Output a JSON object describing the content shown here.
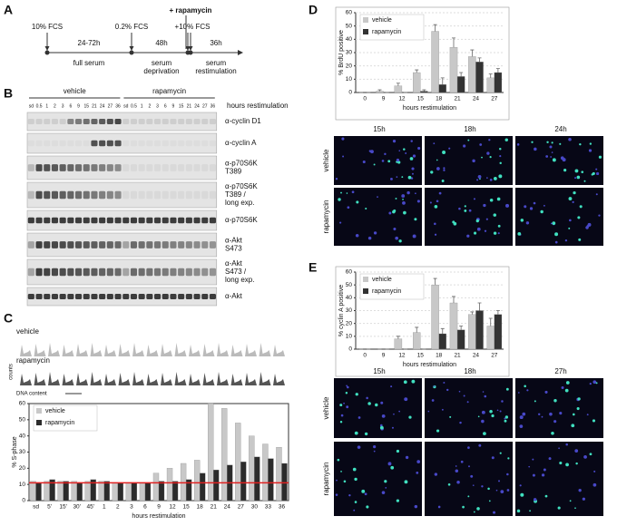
{
  "figure": {
    "panel_labels": [
      "A",
      "B",
      "C",
      "D",
      "E"
    ],
    "timeline": {
      "top": [
        "10% FCS",
        "0.2% FCS",
        "+ rapamycin",
        "+10% FCS"
      ],
      "durations": [
        "24-72h",
        "48h",
        "36h"
      ],
      "phases": [
        [
          "full serum"
        ],
        [
          "serum",
          "deprivation"
        ],
        [
          "serum",
          "restimulation"
        ]
      ]
    },
    "blot": {
      "groups": [
        "vehicle",
        "rapamycin"
      ],
      "axis": "hours restimulation",
      "lanes": [
        [
          "sd",
          "0.5",
          "1",
          "2",
          "3",
          "6",
          "9",
          "15",
          "21",
          "24",
          "27",
          "36"
        ],
        [
          "sd",
          "0.5",
          "1",
          "2",
          "3",
          "6",
          "9",
          "15",
          "21",
          "24",
          "27",
          "36"
        ]
      ],
      "rows": [
        [
          "α-cyclin D1"
        ],
        [
          "α-cyclin A"
        ],
        [
          "α-p70S6K",
          "T389"
        ],
        [
          "α-p70S6K",
          "T389 /",
          "long exp."
        ],
        [
          "α-p70S6K"
        ],
        [
          "α-Akt",
          "S473"
        ],
        [
          "α-Akt",
          "S473 /",
          "long exp."
        ],
        [
          "α-Akt"
        ]
      ]
    },
    "flow": {
      "rows": [
        "vehicle",
        "rapamycin"
      ],
      "ylabel": "counts",
      "xlabel": "DNA content"
    },
    "images": [
      {
        "cols": [
          "15h",
          "18h",
          "24h"
        ],
        "rows": [
          "vehicle",
          "rapamycin"
        ]
      },
      {
        "cols": [
          "15h",
          "18h",
          "27h"
        ],
        "rows": [
          "vehicle",
          "rapamycin"
        ]
      }
    ]
  },
  "chart_data": [
    {
      "type": "bar",
      "ylabel": "% S-phase",
      "xlabel": "hours restimulation",
      "categories": [
        "sd",
        "5'",
        "15'",
        "30'",
        "45'",
        "1",
        "2",
        "3",
        "6",
        "9",
        "12",
        "15",
        "18",
        "21",
        "24",
        "27",
        "30",
        "33",
        "36"
      ],
      "series": [
        {
          "name": "vehicle",
          "color": "#c8c8c8",
          "values": [
            12,
            12,
            12,
            12,
            12,
            12,
            11,
            11,
            11,
            17,
            20,
            23,
            25,
            60,
            57,
            48,
            40,
            35,
            33
          ]
        },
        {
          "name": "rapamycin",
          "color": "#2b2b2b",
          "values": [
            11,
            13,
            12,
            11,
            13,
            12,
            11,
            11,
            11,
            12,
            12,
            13,
            17,
            19,
            22,
            24,
            27,
            26,
            23
          ]
        }
      ],
      "reference_line": 11,
      "reference_color": "#e02020",
      "ylim": [
        0,
        60
      ],
      "yticks": [
        0,
        10,
        20,
        30,
        40,
        50,
        60
      ],
      "grid": false,
      "legend": "upper-left",
      "frame": true
    },
    {
      "type": "bar",
      "ylabel": "% BrdU positive",
      "xlabel": "hours restimulation",
      "categories": [
        "0",
        "9",
        "12",
        "15",
        "18",
        "21",
        "24",
        "27"
      ],
      "series": [
        {
          "name": "vehicle",
          "color": "#c8c8c8",
          "values": [
            0,
            1,
            5,
            15,
            46,
            34,
            27,
            11
          ],
          "errors": [
            0,
            1,
            2,
            2,
            5,
            7,
            5,
            3
          ]
        },
        {
          "name": "rapamycin",
          "color": "#333333",
          "values": [
            0,
            0,
            0,
            1,
            6,
            12,
            23,
            15
          ],
          "errors": [
            0,
            0,
            0,
            1,
            5,
            3,
            3,
            3
          ]
        }
      ],
      "ylim": [
        0,
        60
      ],
      "yticks": [
        0,
        10,
        20,
        30,
        40,
        50,
        60
      ],
      "grid": true,
      "legend": "upper-left",
      "frame": false
    },
    {
      "type": "bar",
      "ylabel": "% cyclin A positive",
      "xlabel": "hours restimulation",
      "categories": [
        "0",
        "9",
        "12",
        "15",
        "18",
        "21",
        "24",
        "27"
      ],
      "series": [
        {
          "name": "vehicle",
          "color": "#c8c8c8",
          "values": [
            0,
            0,
            8,
            13,
            50,
            36,
            27,
            18
          ],
          "errors": [
            0,
            0,
            2,
            4,
            5,
            5,
            2,
            6
          ]
        },
        {
          "name": "rapamycin",
          "color": "#333333",
          "values": [
            0,
            0,
            0,
            0,
            12,
            15,
            30,
            27
          ],
          "errors": [
            0,
            0,
            0,
            0,
            4,
            3,
            6,
            3
          ]
        }
      ],
      "ylim": [
        0,
        60
      ],
      "yticks": [
        0,
        10,
        20,
        30,
        40,
        50,
        60
      ],
      "grid": true,
      "legend": "upper-left",
      "frame": false
    }
  ]
}
